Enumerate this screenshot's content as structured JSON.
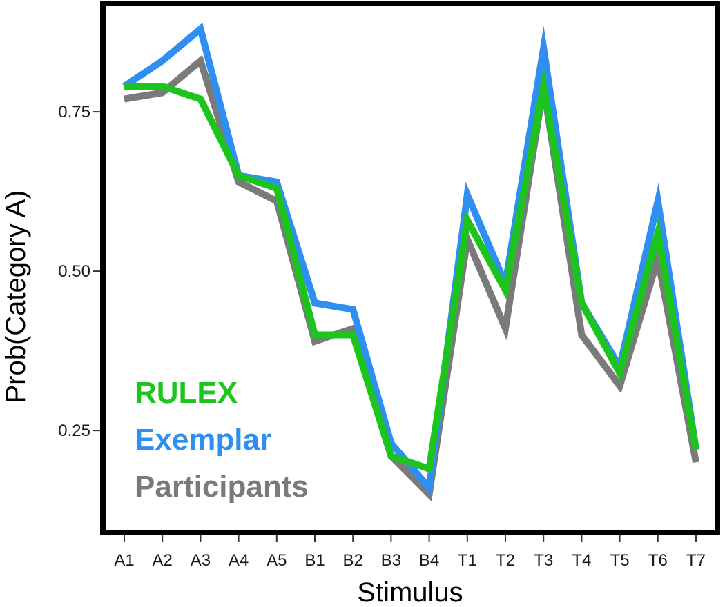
{
  "chart_data": {
    "type": "line",
    "title": "",
    "xlabel": "Stimulus",
    "ylabel": "Prob(Category A)",
    "categories": [
      "A1",
      "A2",
      "A3",
      "A4",
      "A5",
      "B1",
      "B2",
      "B3",
      "B4",
      "T1",
      "T2",
      "T3",
      "T4",
      "T5",
      "T6",
      "T7"
    ],
    "ylim": [
      0.09,
      0.92
    ],
    "yticks": [
      0.25,
      0.5,
      0.75
    ],
    "ytick_labels": [
      "0.25",
      "0.50",
      "0.75"
    ],
    "grid": false,
    "legend_position": "bottom-left",
    "series": [
      {
        "name": "Participants",
        "color": "#7a7a7a",
        "values": [
          0.77,
          0.78,
          0.83,
          0.64,
          0.61,
          0.39,
          0.41,
          0.21,
          0.15,
          0.55,
          0.41,
          0.79,
          0.4,
          0.32,
          0.52,
          0.2
        ]
      },
      {
        "name": "Exemplar",
        "color": "#2e8ff0",
        "values": [
          0.79,
          0.83,
          0.88,
          0.65,
          0.64,
          0.45,
          0.44,
          0.23,
          0.16,
          0.62,
          0.48,
          0.85,
          0.45,
          0.35,
          0.61,
          0.22
        ]
      },
      {
        "name": "RULEX",
        "color": "#1ec41e",
        "values": [
          0.79,
          0.79,
          0.77,
          0.65,
          0.63,
          0.4,
          0.4,
          0.21,
          0.19,
          0.58,
          0.47,
          0.79,
          0.45,
          0.34,
          0.56,
          0.22
        ]
      }
    ],
    "legend_order": [
      "RULEX",
      "Exemplar",
      "Participants"
    ]
  }
}
